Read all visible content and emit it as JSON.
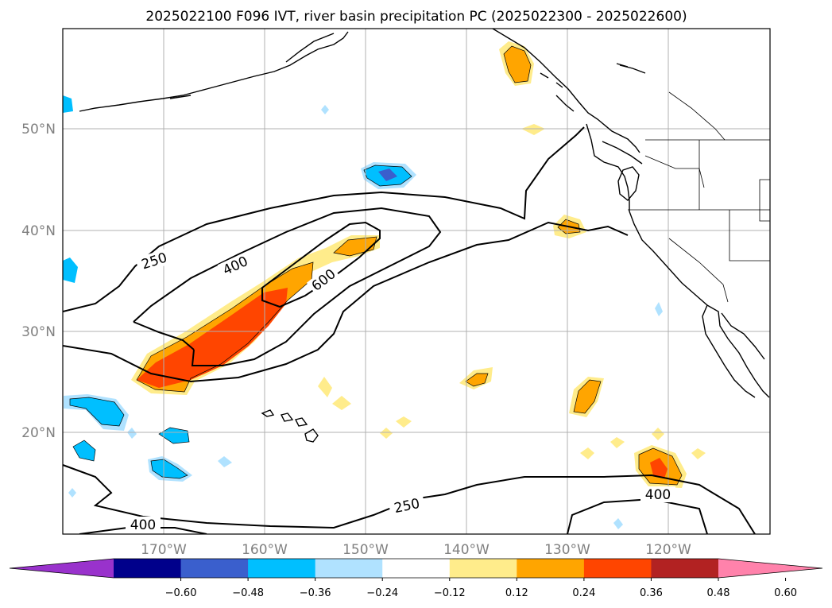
{
  "title": "2025022100 F096 IVT, river basin precipitation PC (2025022300 - 2025022600)",
  "map": {
    "lon_labels": [
      "170°W",
      "160°W",
      "150°W",
      "140°W",
      "130°W",
      "120°W"
    ],
    "lat_labels": [
      "50°N",
      "40°N",
      "30°N",
      "20°N"
    ],
    "ivt_contour_labels": [
      "250",
      "400",
      "600",
      "250",
      "400",
      "400"
    ]
  },
  "colorbar": {
    "tick_labels": [
      "−0.60",
      "−0.48",
      "−0.36",
      "−0.24",
      "−0.12",
      "0.12",
      "0.24",
      "0.36",
      "0.48",
      "0.60"
    ],
    "colors": [
      "#9932cc",
      "#00008b",
      "#3a5fcd",
      "#00bfff",
      "#b0e2ff",
      "#ffffff",
      "#ffec8b",
      "#ffa500",
      "#ff4500",
      "#b22222",
      "#ff82ab"
    ]
  }
}
